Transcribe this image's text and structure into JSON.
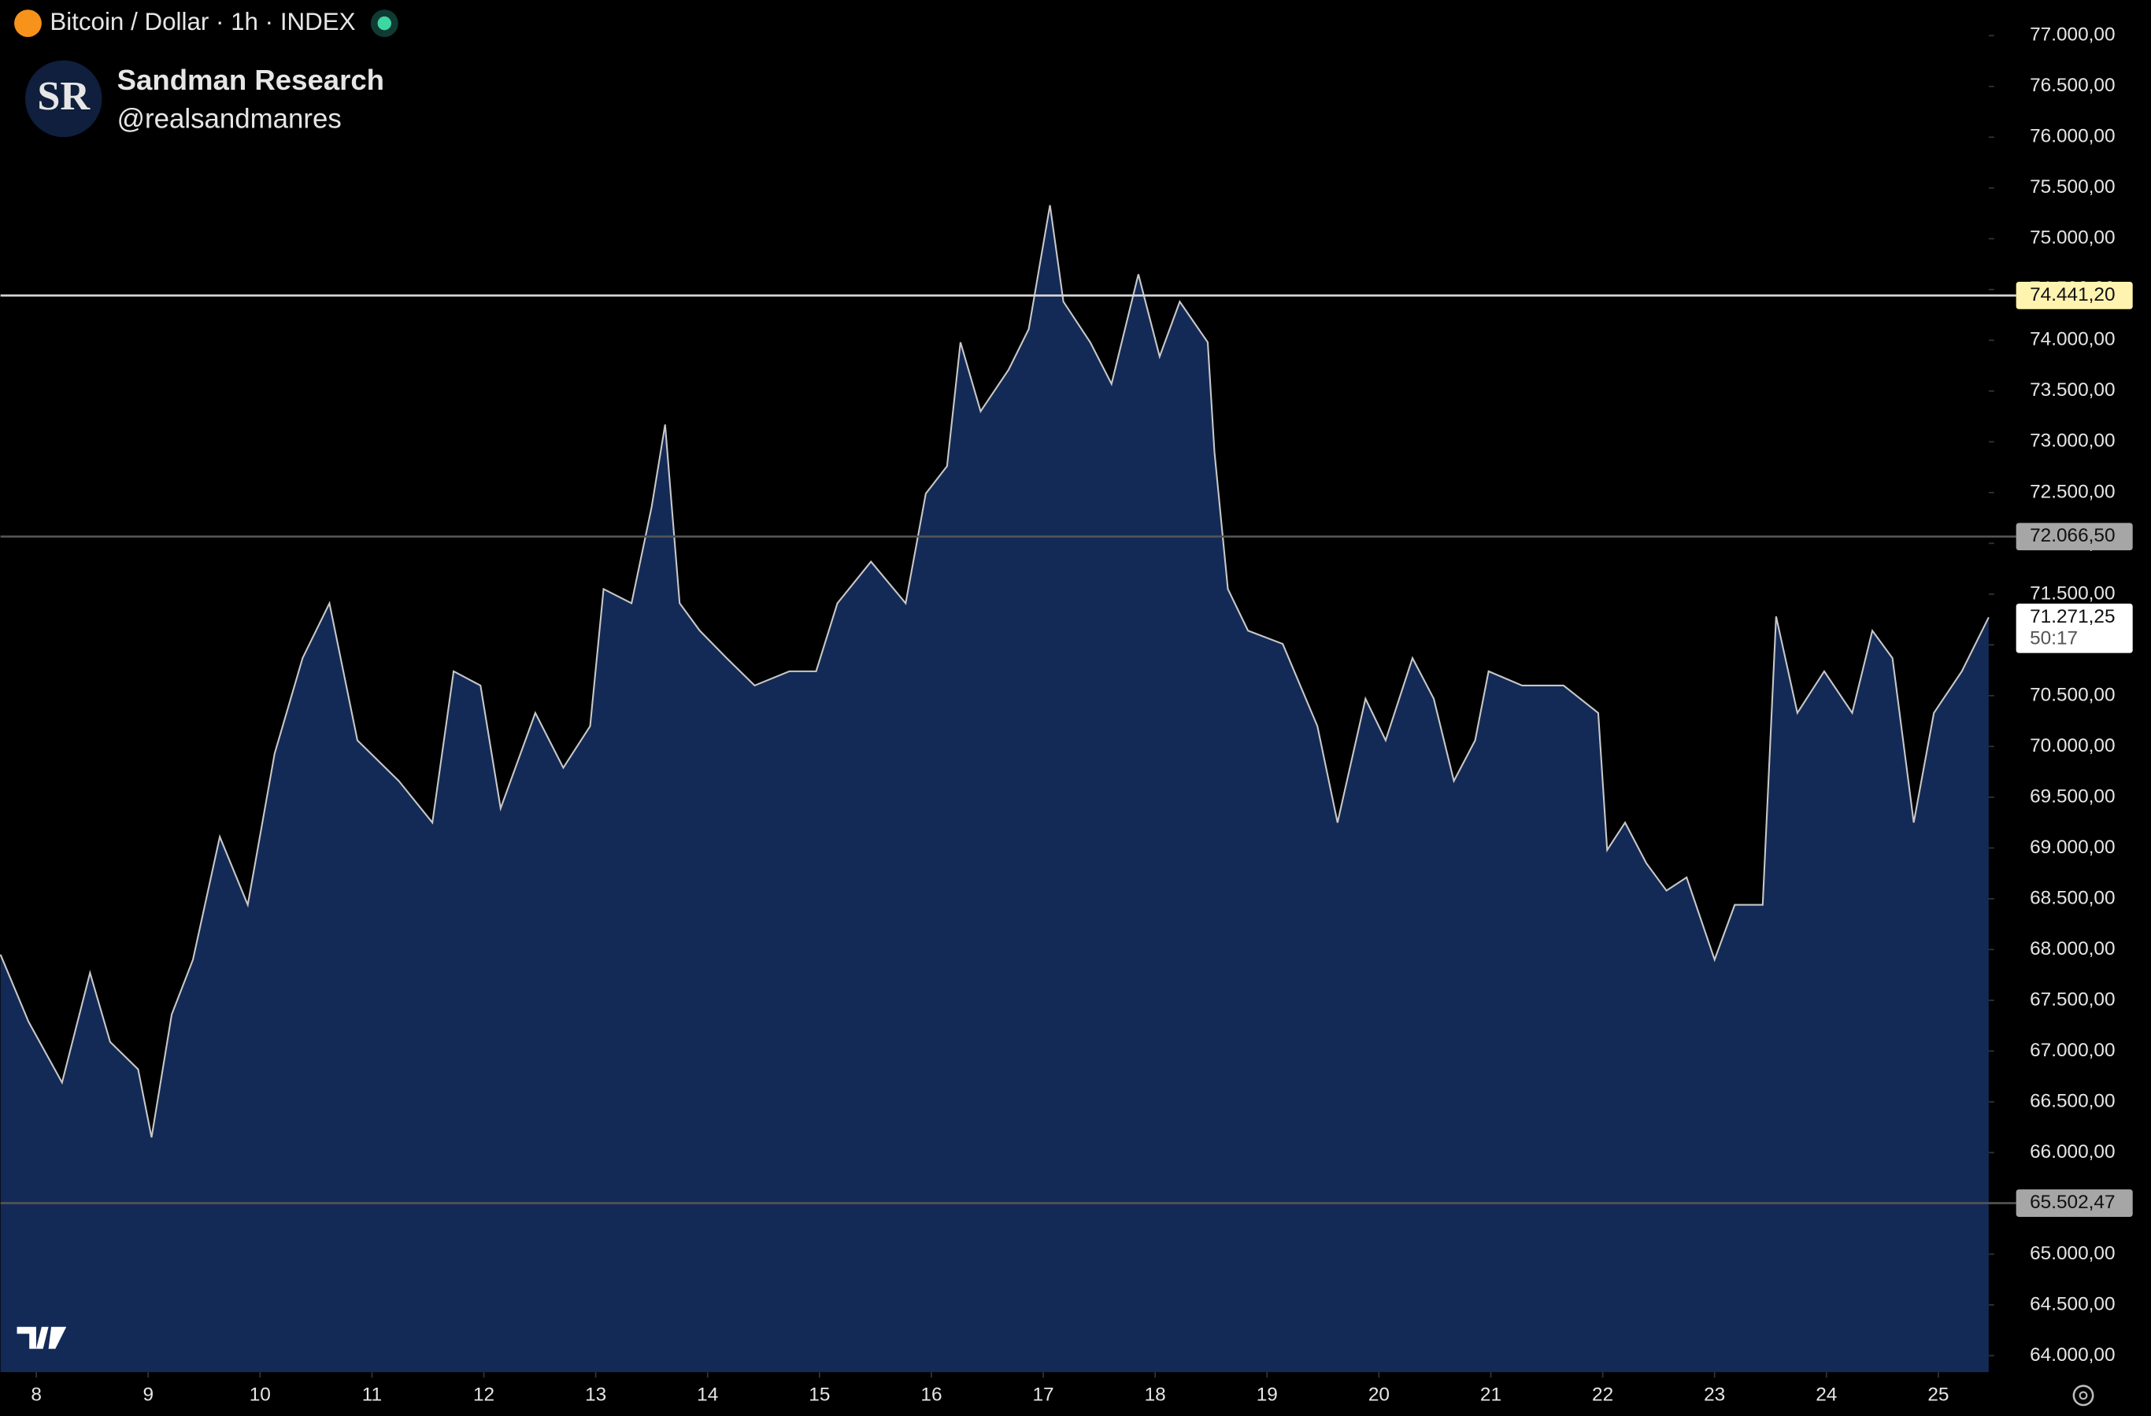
{
  "header": {
    "symbol": "Bitcoin / Dollar · 1h · INDEX",
    "author": "Sandman Research",
    "handle": "@realsandmanres",
    "logo": "SR"
  },
  "chart_data": {
    "type": "area",
    "x": [
      7.68,
      7.93,
      8.23,
      8.48,
      8.66,
      8.91,
      9.03,
      9.21,
      9.4,
      9.64,
      9.89,
      10.13,
      10.38,
      10.62,
      10.87,
      11.24,
      11.54,
      11.73,
      11.97,
      12.15,
      12.46,
      12.71,
      12.95,
      13.07,
      13.32,
      13.5,
      13.62,
      13.75,
      13.93,
      14.17,
      14.42,
      14.73,
      14.97,
      15.16,
      15.46,
      15.77,
      15.95,
      16.14,
      16.26,
      16.44,
      16.69,
      16.87,
      17.06,
      17.18,
      17.42,
      17.61,
      17.85,
      18.04,
      18.22,
      18.47,
      18.53,
      18.65,
      18.83,
      19.14,
      19.45,
      19.63,
      19.88,
      20.06,
      20.3,
      20.49,
      20.67,
      20.86,
      20.98,
      21.28,
      21.65,
      21.96,
      22.04,
      22.2,
      22.39,
      22.57,
      22.75,
      23.0,
      23.18,
      23.43,
      23.55,
      23.74,
      23.98,
      24.23,
      24.41,
      24.59,
      24.78,
      24.96,
      25.21,
      25.45
    ],
    "values": [
      67950,
      67290,
      66690,
      67770,
      67090,
      66820,
      66150,
      67360,
      67900,
      69110,
      68440,
      69930,
      70870,
      71410,
      70060,
      69660,
      69250,
      70740,
      70600,
      69390,
      70330,
      69790,
      70200,
      71550,
      71410,
      72360,
      73170,
      71410,
      71140,
      70870,
      70600,
      70740,
      70740,
      71410,
      71820,
      71410,
      72490,
      72760,
      73980,
      73300,
      73710,
      74110,
      75330,
      74380,
      73980,
      73570,
      74650,
      73840,
      74380,
      73980,
      72900,
      71550,
      71140,
      71010,
      70200,
      69250,
      70470,
      70060,
      70870,
      70470,
      69660,
      70060,
      70740,
      70600,
      70600,
      70330,
      68980,
      69250,
      68850,
      68580,
      68710,
      67900,
      68440,
      68440,
      71280,
      70330,
      70740,
      70330,
      71140,
      70870,
      69250,
      70330,
      70740,
      71271.25
    ],
    "color": "#142a56",
    "line_color": "#c8c8c8",
    "xlim": [
      7.68,
      25.45
    ],
    "xticks": [
      8,
      9,
      10,
      11,
      12,
      13,
      14,
      15,
      16,
      17,
      18,
      19,
      20,
      21,
      22,
      23,
      24,
      25
    ],
    "ylim": [
      63838,
      77351
    ],
    "yticks": [
      {
        "value": 64000,
        "label": "64.000,00"
      },
      {
        "value": 64500,
        "label": "64.500,00"
      },
      {
        "value": 65000,
        "label": "65.000,00"
      },
      {
        "value": 65500,
        "label": "65.500,00"
      },
      {
        "value": 66000,
        "label": "66.000,00"
      },
      {
        "value": 66500,
        "label": "66.500,00"
      },
      {
        "value": 67000,
        "label": "67.000,00"
      },
      {
        "value": 67500,
        "label": "67.500,00"
      },
      {
        "value": 68000,
        "label": "68.000,00"
      },
      {
        "value": 68500,
        "label": "68.500,00"
      },
      {
        "value": 69000,
        "label": "69.000,00"
      },
      {
        "value": 69500,
        "label": "69.500,00"
      },
      {
        "value": 70000,
        "label": "70.000,00"
      },
      {
        "value": 70500,
        "label": "70.500,00"
      },
      {
        "value": 71000,
        "label": "71.000,00"
      },
      {
        "value": 71500,
        "label": "71.500,00"
      },
      {
        "value": 72000,
        "label": "72.000,00"
      },
      {
        "value": 72500,
        "label": "72.500,00"
      },
      {
        "value": 73000,
        "label": "73.000,00"
      },
      {
        "value": 73500,
        "label": "73.500,00"
      },
      {
        "value": 74000,
        "label": "74.000,00"
      },
      {
        "value": 74500,
        "label": "74.500,00"
      },
      {
        "value": 75000,
        "label": "75.000,00"
      },
      {
        "value": 75500,
        "label": "75.500,00"
      },
      {
        "value": 76000,
        "label": "76.000,00"
      },
      {
        "value": 76500,
        "label": "76.500,00"
      },
      {
        "value": 77000,
        "label": "77.000,00"
      }
    ],
    "levels": [
      {
        "value": 74441.2,
        "label": "74.441,20",
        "color": "#d9d9d9",
        "badge": "#fff3b0"
      },
      {
        "value": 72066.5,
        "label": "72.066,50",
        "color": "#555555",
        "badge": "#a6a6a6"
      },
      {
        "value": 65502.47,
        "label": "65.502,47",
        "color": "#555555",
        "badge": "#a6a6a6"
      }
    ],
    "current": {
      "value": 71271.25,
      "label": "71.271,25",
      "countdown": "50:17"
    }
  }
}
